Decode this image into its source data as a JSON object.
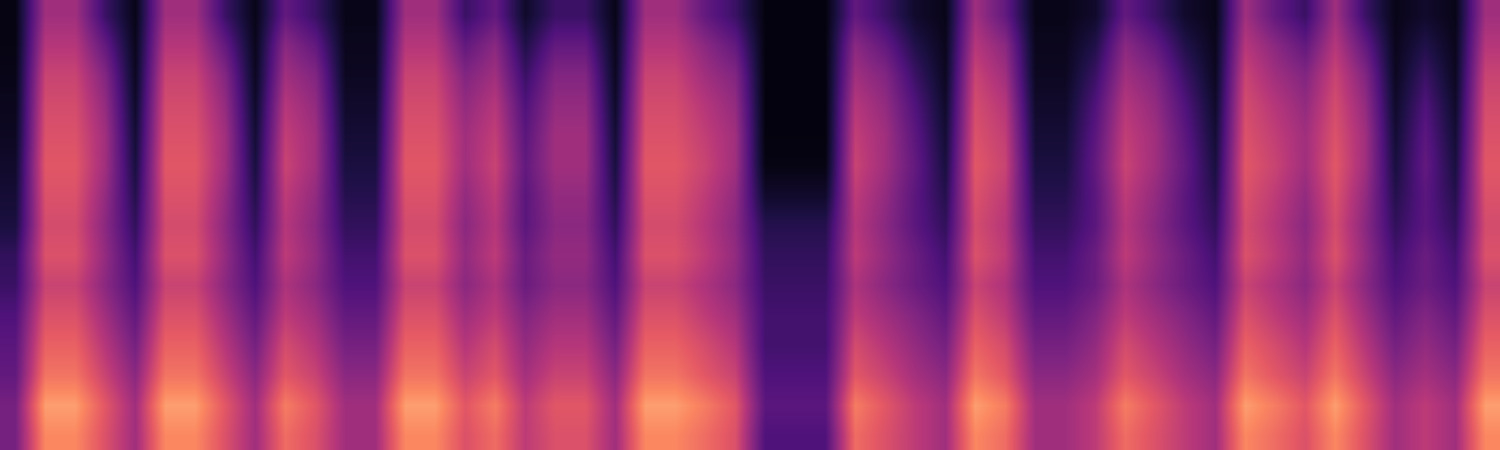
{
  "chart_data": {
    "type": "heatmap",
    "color": "magma",
    "zlim": [
      0,
      100
    ],
    "tick_labels": false,
    "grid": false,
    "z": [
      [
        35,
        75,
        75,
        60,
        45,
        75,
        75,
        60,
        45,
        68,
        60,
        45,
        45,
        75,
        75,
        60,
        68,
        52,
        60,
        60,
        45,
        75,
        75,
        68,
        60,
        25,
        25,
        25,
        68,
        60,
        52,
        45,
        75,
        68,
        45,
        45,
        52,
        68,
        60,
        52,
        45,
        75,
        68,
        60,
        75,
        60,
        45,
        52,
        45,
        75
      ],
      [
        35,
        80,
        80,
        62,
        45,
        80,
        80,
        62,
        45,
        72,
        62,
        45,
        45,
        80,
        80,
        62,
        72,
        52,
        62,
        62,
        45,
        80,
        80,
        72,
        62,
        28,
        28,
        28,
        72,
        62,
        52,
        45,
        80,
        72,
        45,
        45,
        52,
        72,
        62,
        52,
        45,
        80,
        72,
        62,
        80,
        62,
        45,
        52,
        45,
        80
      ],
      [
        30,
        70,
        70,
        55,
        40,
        70,
        70,
        55,
        40,
        62,
        55,
        40,
        40,
        70,
        70,
        55,
        62,
        46,
        55,
        55,
        40,
        70,
        70,
        62,
        55,
        25,
        25,
        25,
        62,
        55,
        46,
        40,
        70,
        62,
        40,
        40,
        46,
        62,
        55,
        46,
        40,
        70,
        62,
        55,
        70,
        55,
        40,
        46,
        40,
        70
      ],
      [
        28,
        65,
        65,
        50,
        35,
        65,
        65,
        50,
        35,
        58,
        50,
        35,
        35,
        65,
        65,
        50,
        58,
        42,
        50,
        50,
        35,
        65,
        65,
        58,
        50,
        22,
        22,
        22,
        58,
        50,
        42,
        35,
        65,
        58,
        35,
        35,
        42,
        58,
        50,
        42,
        35,
        65,
        58,
        50,
        65,
        50,
        35,
        42,
        35,
        65
      ],
      [
        25,
        60,
        60,
        45,
        30,
        60,
        60,
        45,
        30,
        52,
        45,
        30,
        30,
        60,
        60,
        45,
        52,
        38,
        45,
        45,
        30,
        60,
        60,
        52,
        45,
        22,
        22,
        22,
        52,
        45,
        38,
        30,
        60,
        52,
        30,
        30,
        38,
        52,
        45,
        38,
        30,
        60,
        52,
        45,
        60,
        45,
        30,
        38,
        30,
        60
      ],
      [
        20,
        55,
        55,
        40,
        25,
        55,
        55,
        40,
        25,
        48,
        40,
        25,
        25,
        55,
        55,
        40,
        48,
        32,
        40,
        40,
        25,
        55,
        55,
        48,
        40,
        20,
        20,
        20,
        48,
        40,
        32,
        25,
        55,
        48,
        25,
        25,
        32,
        48,
        40,
        32,
        25,
        55,
        48,
        40,
        55,
        40,
        25,
        32,
        25,
        55
      ],
      [
        18,
        60,
        60,
        42,
        22,
        60,
        60,
        42,
        22,
        52,
        42,
        22,
        22,
        60,
        60,
        42,
        52,
        32,
        42,
        42,
        22,
        60,
        60,
        52,
        42,
        18,
        18,
        18,
        52,
        42,
        32,
        22,
        60,
        52,
        22,
        22,
        32,
        52,
        42,
        32,
        22,
        60,
        52,
        42,
        60,
        42,
        22,
        32,
        22,
        60
      ],
      [
        12,
        58,
        58,
        40,
        18,
        58,
        58,
        40,
        18,
        50,
        40,
        18,
        18,
        58,
        58,
        40,
        50,
        28,
        40,
        40,
        18,
        58,
        58,
        50,
        40,
        15,
        15,
        15,
        50,
        40,
        28,
        18,
        58,
        50,
        18,
        18,
        28,
        50,
        40,
        28,
        18,
        58,
        50,
        40,
        58,
        40,
        18,
        28,
        18,
        58
      ],
      [
        10,
        60,
        60,
        42,
        15,
        60,
        60,
        42,
        15,
        52,
        42,
        15,
        15,
        60,
        60,
        42,
        52,
        28,
        42,
        42,
        15,
        60,
        60,
        52,
        42,
        8,
        8,
        8,
        52,
        42,
        28,
        15,
        60,
        52,
        15,
        15,
        28,
        52,
        42,
        28,
        15,
        60,
        52,
        42,
        60,
        42,
        15,
        28,
        15,
        60
      ],
      [
        8,
        62,
        62,
        45,
        12,
        62,
        62,
        45,
        12,
        55,
        45,
        12,
        12,
        62,
        62,
        45,
        55,
        30,
        45,
        45,
        12,
        62,
        62,
        55,
        45,
        3,
        3,
        3,
        55,
        45,
        30,
        12,
        62,
        55,
        12,
        12,
        30,
        55,
        45,
        30,
        12,
        62,
        55,
        45,
        62,
        45,
        12,
        30,
        12,
        62
      ],
      [
        6,
        60,
        60,
        45,
        10,
        60,
        60,
        45,
        10,
        53,
        45,
        10,
        10,
        60,
        60,
        45,
        53,
        28,
        45,
        45,
        10,
        60,
        60,
        53,
        45,
        2,
        2,
        2,
        53,
        45,
        28,
        10,
        60,
        53,
        10,
        10,
        28,
        53,
        45,
        28,
        10,
        60,
        53,
        45,
        60,
        45,
        10,
        28,
        10,
        60
      ],
      [
        5,
        58,
        58,
        42,
        8,
        58,
        58,
        42,
        8,
        50,
        42,
        8,
        8,
        58,
        58,
        42,
        50,
        25,
        42,
        42,
        8,
        58,
        58,
        50,
        42,
        2,
        2,
        2,
        50,
        42,
        25,
        8,
        58,
        50,
        8,
        8,
        25,
        50,
        42,
        25,
        8,
        58,
        50,
        42,
        58,
        42,
        8,
        25,
        8,
        58
      ],
      [
        4,
        55,
        55,
        38,
        6,
        55,
        55,
        38,
        6,
        45,
        38,
        6,
        6,
        55,
        55,
        38,
        45,
        20,
        38,
        38,
        6,
        55,
        55,
        45,
        38,
        2,
        2,
        2,
        45,
        38,
        20,
        6,
        55,
        45,
        6,
        6,
        20,
        45,
        38,
        20,
        6,
        55,
        45,
        38,
        55,
        38,
        6,
        20,
        6,
        55
      ],
      [
        3,
        50,
        50,
        30,
        5,
        50,
        50,
        30,
        5,
        40,
        30,
        5,
        5,
        50,
        50,
        30,
        40,
        14,
        30,
        30,
        5,
        50,
        50,
        40,
        30,
        2,
        2,
        2,
        40,
        30,
        14,
        5,
        50,
        40,
        5,
        5,
        14,
        40,
        30,
        14,
        5,
        50,
        40,
        30,
        50,
        30,
        5,
        14,
        5,
        50
      ],
      [
        3,
        45,
        45,
        20,
        4,
        45,
        45,
        20,
        4,
        30,
        20,
        4,
        4,
        45,
        45,
        20,
        30,
        8,
        20,
        20,
        4,
        45,
        45,
        30,
        20,
        2,
        2,
        2,
        30,
        20,
        8,
        4,
        45,
        30,
        4,
        4,
        8,
        30,
        20,
        8,
        4,
        45,
        30,
        20,
        45,
        20,
        4,
        8,
        4,
        45
      ]
    ]
  }
}
